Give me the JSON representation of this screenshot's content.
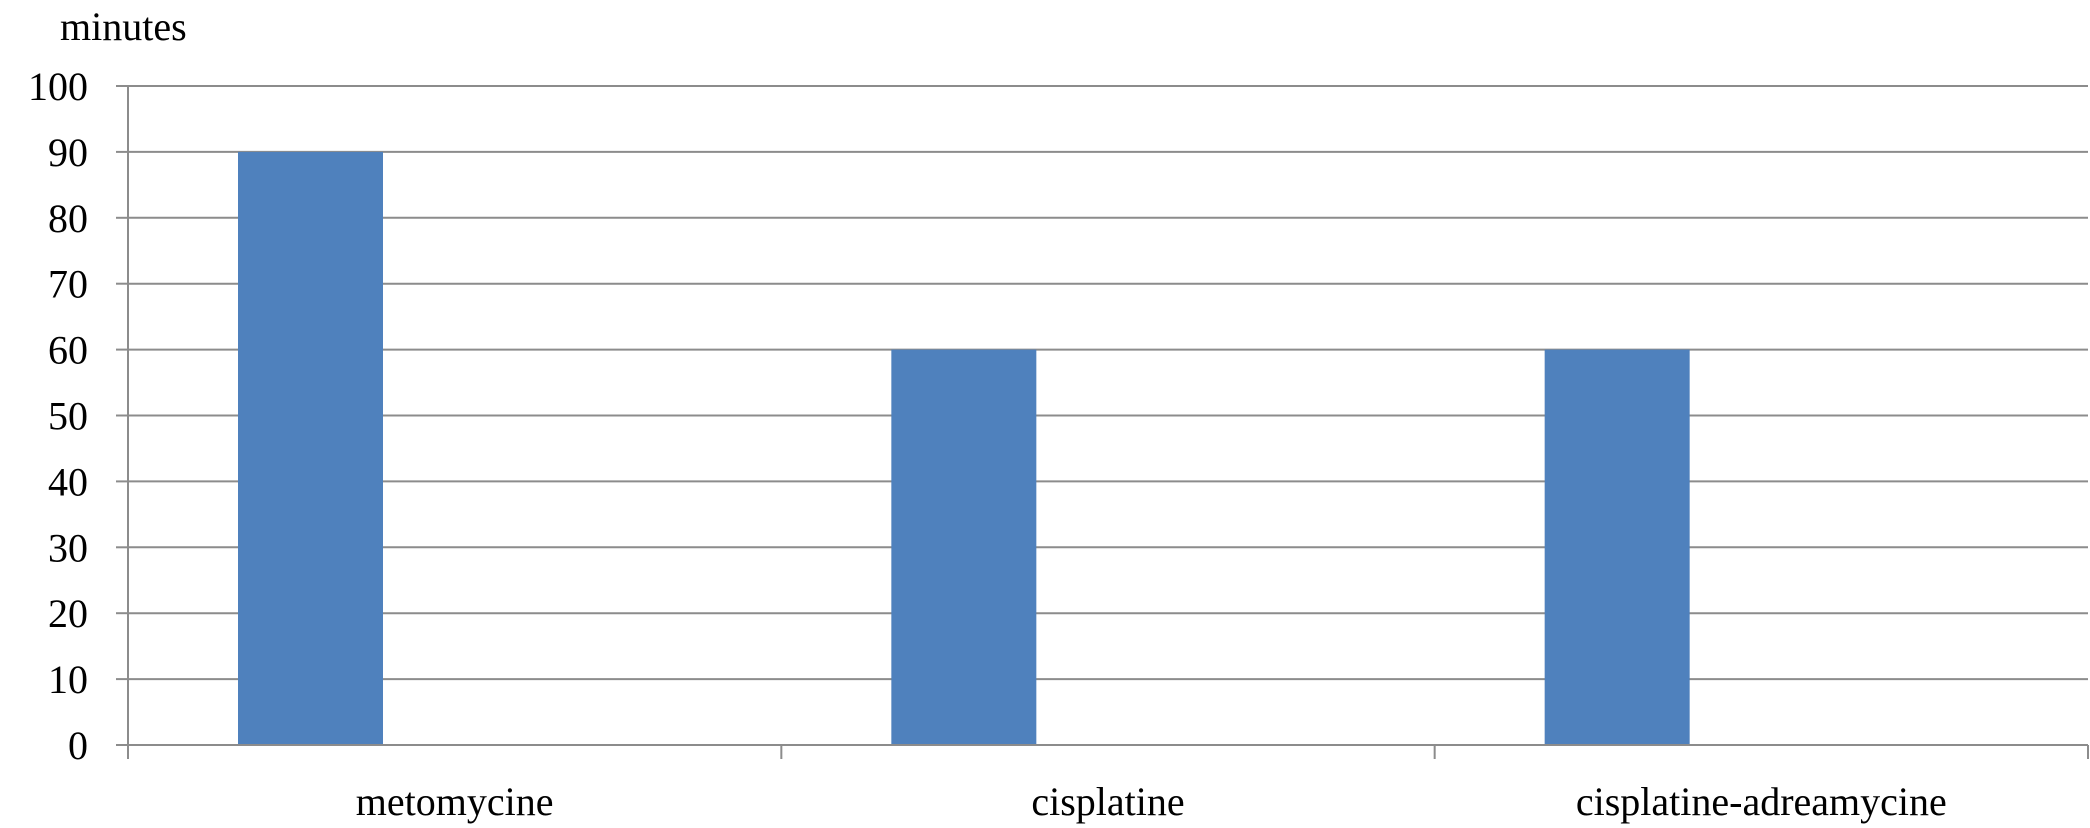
{
  "chart_data": {
    "type": "bar",
    "title": "",
    "xlabel": "",
    "ylabel": "minutes",
    "categories": [
      "metomycine",
      "cisplatine",
      "cisplatine-adreamycine"
    ],
    "series": [
      {
        "values": [
          90,
          60,
          60
        ]
      }
    ],
    "ylim": [
      0,
      100
    ],
    "yticks": [
      0,
      10,
      20,
      30,
      40,
      50,
      60,
      70,
      80,
      90,
      100
    ],
    "grid": true,
    "legend": "none",
    "colors": {
      "bar": "#4F81BD",
      "grid": "#8C8C8C",
      "axis": "#8C8C8C",
      "text": "#000000"
    }
  }
}
